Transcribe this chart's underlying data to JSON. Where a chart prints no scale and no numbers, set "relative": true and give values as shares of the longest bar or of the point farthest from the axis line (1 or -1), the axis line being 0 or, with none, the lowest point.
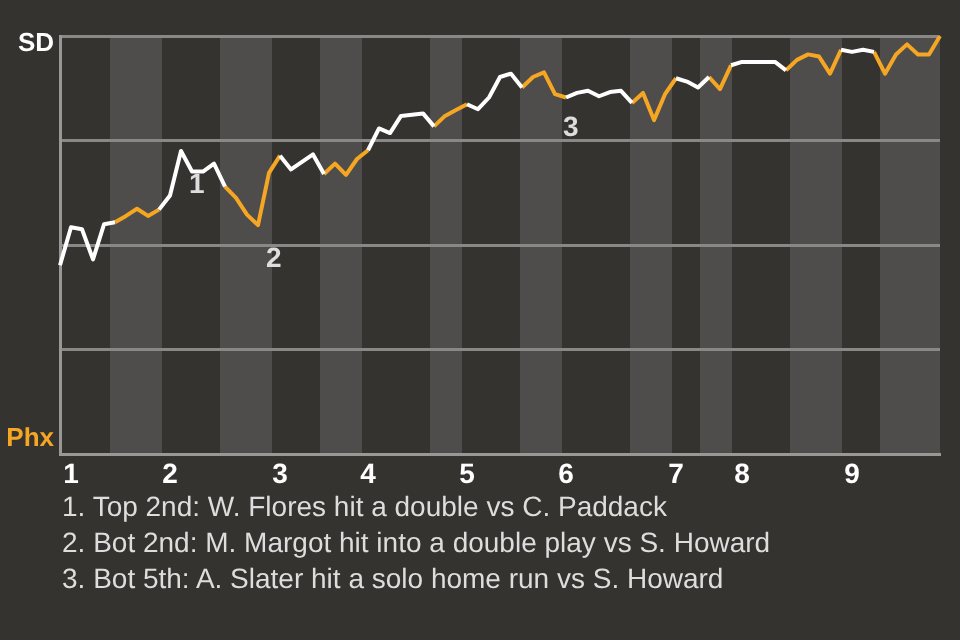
{
  "chart_data": {
    "type": "line",
    "marker": "none",
    "grid": "y",
    "relative": true,
    "categories": [
      null,
      "1",
      null,
      null,
      null,
      null,
      null,
      null,
      null,
      null,
      "2",
      null,
      null,
      null,
      null,
      null,
      null,
      null,
      null,
      null,
      "3",
      null,
      null,
      null,
      null,
      null,
      null,
      null,
      "4",
      null,
      null,
      null,
      null,
      null,
      null,
      null,
      null,
      "5",
      null,
      null,
      null,
      null,
      null,
      null,
      null,
      null,
      "6",
      null,
      null,
      null,
      null,
      null,
      null,
      null,
      null,
      null,
      "7",
      null,
      null,
      null,
      null,
      null,
      "8",
      null,
      null,
      null,
      null,
      null,
      null,
      null,
      null,
      null,
      "9",
      null,
      null,
      null,
      null,
      null,
      null,
      null,
      null
    ],
    "series": [
      {
        "color": "#ffffff",
        "values": [
          0.452,
          0.543,
          0.538,
          0.466,
          0.55,
          0.555,
          null,
          null,
          null,
          0.585,
          0.619,
          0.725,
          0.676,
          0.676,
          0.695,
          0.64,
          null,
          null,
          null,
          null,
          0.714,
          0.681,
          0.699,
          0.717,
          0.67,
          null,
          null,
          null,
          0.727,
          0.779,
          0.768,
          0.809,
          0.812,
          0.815,
          0.784,
          null,
          null,
          0.837,
          0.825,
          0.853,
          0.902,
          0.91,
          0.877,
          null,
          null,
          null,
          0.853,
          0.864,
          0.869,
          0.856,
          0.866,
          0.869,
          0.84,
          null,
          null,
          null,
          0.899,
          0.891,
          0.877,
          0.902,
          null,
          0.93,
          0.938,
          0.938,
          0.938,
          0.938,
          0.918,
          null,
          null,
          null,
          null,
          0.967,
          0.962,
          0.967,
          0.962,
          null,
          null,
          null,
          null,
          null,
          null
        ]
      },
      {
        "color": "#f5a623",
        "values": [
          null,
          null,
          null,
          null,
          null,
          0.555,
          0.57,
          0.587,
          0.57,
          0.585,
          null,
          null,
          null,
          null,
          null,
          0.64,
          0.613,
          0.573,
          0.548,
          0.673,
          0.714,
          null,
          null,
          null,
          0.67,
          0.695,
          0.668,
          0.706,
          0.727,
          null,
          null,
          null,
          null,
          null,
          0.784,
          0.809,
          0.823,
          0.837,
          null,
          null,
          null,
          null,
          0.877,
          0.902,
          0.913,
          0.861,
          0.853,
          null,
          null,
          null,
          null,
          null,
          0.84,
          0.864,
          0.799,
          0.861,
          0.899,
          null,
          null,
          0.902,
          0.873,
          0.93,
          null,
          null,
          null,
          null,
          0.918,
          0.943,
          0.956,
          0.951,
          0.91,
          0.967,
          null,
          null,
          0.962,
          0.91,
          0.956,
          0.98,
          0.956,
          0.956,
          1
        ]
      }
    ],
    "annotations": [
      "SD",
      "Phx",
      "1",
      "2",
      "3",
      "1. Top 2nd: W. Flores hit a double vs C. Paddack",
      "2. Bot 2nd: M. Margot hit into a double play vs S. Howard",
      "3. Bot 5th: A. Slater hit a solo home run vs S. Howard"
    ]
  }
}
